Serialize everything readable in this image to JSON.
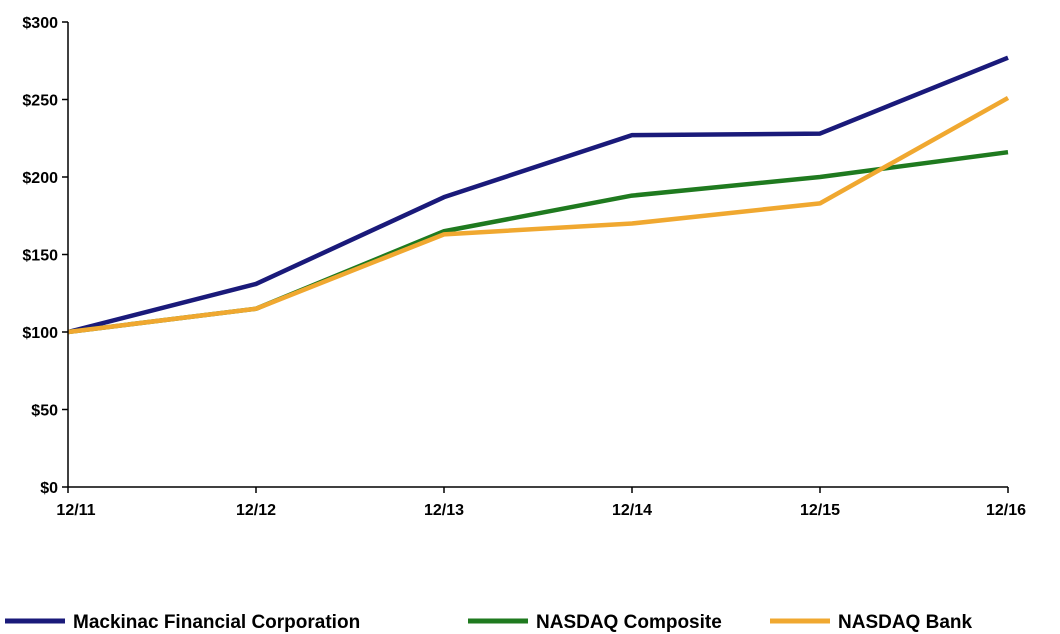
{
  "chart_data": {
    "type": "line",
    "categories": [
      "12/11",
      "12/12",
      "12/13",
      "12/14",
      "12/15",
      "12/16"
    ],
    "ylim": [
      0,
      300
    ],
    "yticks": [
      0,
      50,
      100,
      150,
      200,
      250,
      300
    ],
    "ytick_labels": [
      "$0",
      "$50",
      "$100",
      "$150",
      "$200",
      "$250",
      "$300"
    ],
    "grid": false,
    "legend_position": "bottom",
    "series": [
      {
        "name": "Mackinac Financial Corporation",
        "color": "#1a1a7a",
        "values": [
          100,
          131,
          187,
          227,
          228,
          277
        ]
      },
      {
        "name": "NASDAQ Composite",
        "color": "#1f7a1f",
        "values": [
          100,
          115,
          165,
          188,
          200,
          216
        ]
      },
      {
        "name": "NASDAQ Bank",
        "color": "#f0a830",
        "values": [
          100,
          115,
          163,
          170,
          183,
          251
        ]
      }
    ]
  }
}
